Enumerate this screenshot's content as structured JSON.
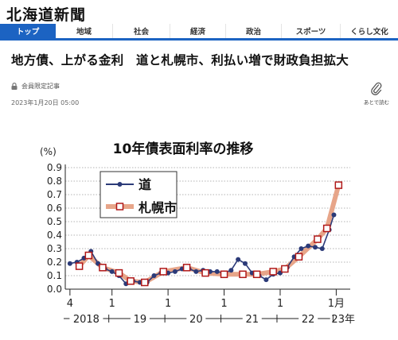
{
  "site": {
    "logo": "北海道新聞"
  },
  "nav": {
    "items": [
      {
        "label": "トップ",
        "active": true
      },
      {
        "label": "地域"
      },
      {
        "label": "社会"
      },
      {
        "label": "経済"
      },
      {
        "label": "政治"
      },
      {
        "label": "スポーツ"
      },
      {
        "label": "くらし文化"
      }
    ]
  },
  "article": {
    "headline": "地方債、上がる金利　道と札幌市、利払い増で財政負担拡大",
    "member_label": "会員限定記事",
    "date": "2023年1月20日 05:00",
    "read_later_label": "あとで読む"
  },
  "chart_data": {
    "type": "line",
    "title": "10年債表面利率の推移",
    "ylabel": "(%)",
    "ylim": [
      0,
      0.9
    ],
    "yticks": [
      "0.9",
      "0.8",
      "0.7",
      "0.6",
      "0.5",
      "0.4",
      "0.3",
      "0.2",
      "0.1",
      "0.0"
    ],
    "x_month_labels": [
      {
        "x": 0,
        "label": "4"
      },
      {
        "x": 9,
        "label": "1"
      },
      {
        "x": 21,
        "label": "1"
      },
      {
        "x": 33,
        "label": "1"
      },
      {
        "x": 45,
        "label": "1"
      },
      {
        "x": 57,
        "label": "1月"
      }
    ],
    "x_year_labels": [
      {
        "x": 3.5,
        "label": "2018"
      },
      {
        "x": 15,
        "label": "19"
      },
      {
        "x": 27,
        "label": "20"
      },
      {
        "x": 39,
        "label": "21"
      },
      {
        "x": 51,
        "label": "22"
      },
      {
        "x": 58.5,
        "label": "23年"
      }
    ],
    "xlim": [
      -1,
      60
    ],
    "legend": "top-left",
    "colors": {
      "hokkaido": "#2b3a78",
      "sapporo": "#e7a589",
      "sapporo_marker": "#b01818"
    },
    "series": [
      {
        "name": "道",
        "style": "dark-line-circle",
        "points": [
          [
            0,
            0.19
          ],
          [
            1.5,
            0.2
          ],
          [
            3,
            0.23
          ],
          [
            4.5,
            0.28
          ],
          [
            6,
            0.19
          ],
          [
            7.5,
            0.15
          ],
          [
            9,
            0.13
          ],
          [
            10.5,
            0.1
          ],
          [
            12,
            0.04
          ],
          [
            13.5,
            0.06
          ],
          [
            15,
            0.05
          ],
          [
            16.5,
            0.05
          ],
          [
            18,
            0.1
          ],
          [
            19.5,
            0.12
          ],
          [
            21,
            0.12
          ],
          [
            22.5,
            0.13
          ],
          [
            24,
            0.15
          ],
          [
            25.5,
            0.15
          ],
          [
            27,
            0.13
          ],
          [
            28.5,
            0.14
          ],
          [
            30,
            0.13
          ],
          [
            31.5,
            0.13
          ],
          [
            33,
            0.12
          ],
          [
            34.5,
            0.14
          ],
          [
            36,
            0.22
          ],
          [
            37.5,
            0.19
          ],
          [
            39,
            0.12
          ],
          [
            40.5,
            0.1
          ],
          [
            42,
            0.07
          ],
          [
            43.5,
            0.11
          ],
          [
            45,
            0.12
          ],
          [
            46.5,
            0.16
          ],
          [
            48,
            0.24
          ],
          [
            49.5,
            0.3
          ],
          [
            51,
            0.32
          ],
          [
            52.5,
            0.31
          ],
          [
            54,
            0.3
          ],
          [
            55.5,
            0.44
          ],
          [
            56.5,
            0.55
          ]
        ]
      },
      {
        "name": "札幌市",
        "style": "thick-salmon-square",
        "points": [
          [
            2,
            0.17
          ],
          [
            4,
            0.25
          ],
          [
            7,
            0.16
          ],
          [
            10.5,
            0.12
          ],
          [
            13,
            0.06
          ],
          [
            16,
            0.05
          ],
          [
            20,
            0.13
          ],
          [
            25,
            0.16
          ],
          [
            29,
            0.12
          ],
          [
            33,
            0.11
          ],
          [
            37,
            0.11
          ],
          [
            40,
            0.11
          ],
          [
            43.5,
            0.13
          ],
          [
            46,
            0.15
          ],
          [
            49,
            0.24
          ],
          [
            53,
            0.37
          ],
          [
            55,
            0.45
          ],
          [
            57.5,
            0.77
          ]
        ]
      }
    ]
  }
}
